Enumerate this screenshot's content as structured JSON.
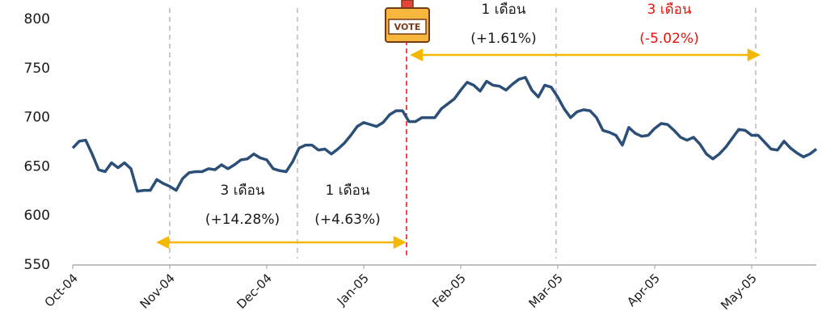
{
  "chart_data": {
    "type": "line",
    "categories": [
      "Oct-04",
      null,
      null,
      null,
      null,
      null,
      null,
      null,
      null,
      null,
      null,
      null,
      null,
      null,
      null,
      "Nov-04",
      null,
      null,
      null,
      null,
      null,
      null,
      null,
      null,
      null,
      null,
      null,
      null,
      null,
      null,
      "Dec-04",
      null,
      null,
      null,
      null,
      null,
      null,
      null,
      null,
      null,
      null,
      null,
      null,
      null,
      null,
      "Jan-05",
      null,
      null,
      null,
      null,
      null,
      null,
      null,
      null,
      null,
      null,
      null,
      null,
      null,
      null,
      "Feb-05",
      null,
      null,
      null,
      null,
      null,
      null,
      null,
      null,
      null,
      null,
      null,
      null,
      null,
      null,
      "Mar-05",
      null,
      null,
      null,
      null,
      null,
      null,
      null,
      null,
      null,
      null,
      null,
      null,
      null,
      null,
      "Apr-05",
      null,
      null,
      null,
      null,
      null,
      null,
      null,
      null,
      null,
      null,
      null,
      null,
      null,
      null,
      "May-05",
      null,
      null,
      null,
      null,
      null,
      null,
      null,
      null,
      null,
      null
    ],
    "values": [
      669,
      676,
      677,
      663,
      647,
      645,
      654,
      649,
      654,
      648,
      625,
      626,
      626,
      637,
      633,
      630,
      626,
      638,
      644,
      645,
      645,
      648,
      647,
      652,
      648,
      652,
      657,
      658,
      663,
      659,
      657,
      648,
      646,
      645,
      655,
      669,
      672,
      672,
      667,
      668,
      663,
      668,
      674,
      682,
      691,
      695,
      693,
      691,
      695,
      703,
      707,
      707,
      696,
      696,
      700,
      700,
      700,
      709,
      714,
      719,
      728,
      736,
      733,
      727,
      737,
      733,
      732,
      728,
      734,
      739,
      741,
      728,
      721,
      733,
      731,
      721,
      709,
      700,
      706,
      708,
      707,
      700,
      687,
      685,
      682,
      672,
      690,
      684,
      681,
      682,
      689,
      694,
      693,
      687,
      680,
      677,
      680,
      673,
      663,
      658,
      663,
      670,
      679,
      688,
      687,
      682,
      682,
      675,
      668,
      667,
      676,
      669,
      664,
      660,
      663,
      668
    ],
    "color": "#2b4f77",
    "ylim": [
      550,
      800
    ],
    "yticks": [
      550,
      600,
      650,
      700,
      750,
      800
    ],
    "grid": false,
    "annotations": [
      {
        "label": "3 เดือน",
        "change": "(+14.28%)",
        "color": "#1a1a1a"
      },
      {
        "label": "1 เดือน",
        "change": "(+4.63%)",
        "color": "#1a1a1a"
      },
      {
        "label": "1 เดือน",
        "change": "(+1.61%)",
        "color": "#1a1a1a"
      },
      {
        "label": "3 เดือน",
        "change": "(-5.02%)",
        "color": "#e8140c"
      }
    ],
    "marker_label": "VOTE"
  }
}
